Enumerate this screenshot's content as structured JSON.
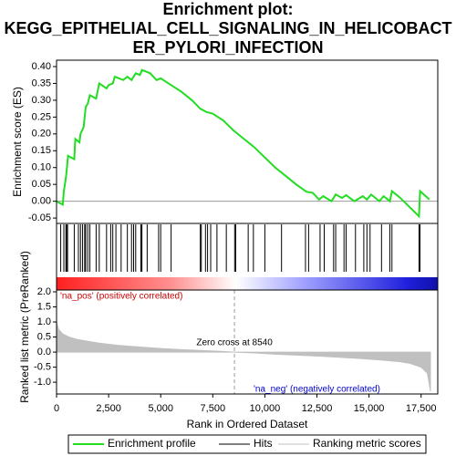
{
  "chart_data": [
    {
      "type": "line",
      "title": "Enrichment plot:",
      "subtitle": "KEGG_EPITHELIAL_CELL_SIGNALING_IN_HELICOBACTER_PYLORI_INFECTION",
      "ylabel": "Enrichment score (ES)",
      "xlim": [
        0,
        18300
      ],
      "ylim": [
        -0.066,
        0.419
      ],
      "yticks": [
        {
          "value": 0.4,
          "label": "0.40"
        },
        {
          "value": 0.35,
          "label": "0.35"
        },
        {
          "value": 0.3,
          "label": "0.30"
        },
        {
          "value": 0.25,
          "label": "0.25"
        },
        {
          "value": 0.2,
          "label": "0.20"
        },
        {
          "value": 0.15,
          "label": "0.15"
        },
        {
          "value": 0.1,
          "label": "0.10"
        },
        {
          "value": 0.05,
          "label": "0.05"
        },
        {
          "value": 0,
          "label": "0.00"
        },
        {
          "value": -0.05,
          "label": "-0.05"
        }
      ],
      "series": [
        {
          "name": "Enrichment profile",
          "color": "#22dd22",
          "x": [
            0,
            300,
            350,
            450,
            500,
            550,
            850,
            900,
            1100,
            1150,
            1300,
            1400,
            1500,
            1600,
            1900,
            2050,
            2400,
            2500,
            2700,
            2800,
            3200,
            3400,
            3600,
            3800,
            4000,
            4100,
            4500,
            4800,
            5000,
            5500,
            6000,
            6500,
            6900,
            7200,
            7500,
            8000,
            8500,
            9000,
            9500,
            10000,
            10500,
            11000,
            11500,
            12000,
            12300,
            12600,
            12800,
            13200,
            13400,
            13700,
            13900,
            14300,
            14700,
            14900,
            15100,
            15500,
            15700,
            16000,
            16100,
            16500,
            17400,
            17450,
            17900
          ],
          "values": [
            0,
            -0.01,
            0.03,
            0.07,
            0.1,
            0.135,
            0.125,
            0.185,
            0.175,
            0.2,
            0.22,
            0.28,
            0.29,
            0.315,
            0.305,
            0.35,
            0.335,
            0.345,
            0.35,
            0.37,
            0.36,
            0.37,
            0.36,
            0.38,
            0.375,
            0.39,
            0.38,
            0.36,
            0.365,
            0.345,
            0.325,
            0.3,
            0.275,
            0.265,
            0.26,
            0.24,
            0.21,
            0.185,
            0.16,
            0.13,
            0.1,
            0.075,
            0.05,
            0.028,
            0.025,
            0.005,
            0.015,
            0,
            0.02,
            0.01,
            0.018,
            0,
            0.015,
            0.005,
            0.02,
            0,
            0.015,
            0,
            0.03,
            0.01,
            -0.045,
            0.03,
            0.005
          ]
        },
        {
          "name": "Hits",
          "color": "#000000",
          "x": [
            200,
            350,
            450,
            480,
            530,
            850,
            1050,
            1150,
            1250,
            1350,
            1400,
            1500,
            1600,
            1900,
            2050,
            2400,
            2600,
            2700,
            2850,
            3100,
            3400,
            3600,
            3700,
            3800,
            4050,
            4100,
            4350,
            4900,
            5000,
            5500,
            6900,
            6950,
            7150,
            7250,
            7400,
            7700,
            8150,
            8550,
            8600,
            9200,
            9450,
            10000,
            10800,
            11950,
            12100,
            12650,
            12850,
            13300,
            13400,
            13800,
            13900,
            14350,
            14750,
            14900,
            15050,
            15600,
            16000,
            16100,
            17400,
            17450
          ]
        }
      ],
      "grid": false
    },
    {
      "type": "area",
      "ylabel": "Ranked list metric (PreRanked)",
      "xlabel": "Rank in Ordered Dataset",
      "xlim": [
        0,
        18300
      ],
      "ylim": [
        -1.39,
        2.06
      ],
      "xticks": [
        0,
        {
          "value": 2500,
          "label": "2,500"
        },
        {
          "value": 5000,
          "label": "5,000"
        },
        {
          "value": 7500,
          "label": "7,500"
        },
        {
          "value": 10000,
          "label": "10,000"
        },
        {
          "value": 12500,
          "label": "12,500"
        },
        {
          "value": 15000,
          "label": "15,000"
        },
        {
          "value": 17500,
          "label": "17,500"
        }
      ],
      "yticks": [
        {
          "value": 2,
          "label": "2.0"
        },
        {
          "value": 1.5,
          "label": "1.5"
        },
        {
          "value": 1,
          "label": "1.0"
        },
        {
          "value": 0.5,
          "label": "0.5"
        },
        {
          "value": 0,
          "label": "0.0"
        },
        -0.5,
        {
          "value": -1,
          "label": "-1.0"
        }
      ],
      "series": [
        {
          "name": "Ranking metric scores",
          "color": "#c0c0c0",
          "x": [
            0,
            100,
            300,
            600,
            1000,
            2000,
            3000,
            4000,
            5000,
            6000,
            7000,
            8000,
            8540,
            9500,
            10500,
            11500,
            12500,
            13500,
            14500,
            15500,
            16500,
            17000,
            17500,
            17800,
            17950
          ],
          "values": [
            1.0,
            0.75,
            0.6,
            0.5,
            0.42,
            0.3,
            0.22,
            0.17,
            0.12,
            0.08,
            0.05,
            0.02,
            0,
            -0.03,
            -0.07,
            -0.1,
            -0.13,
            -0.17,
            -0.21,
            -0.26,
            -0.32,
            -0.38,
            -0.5,
            -0.7,
            -1.3
          ]
        }
      ],
      "zero_cross": 8540,
      "annotations": [
        "'na_pos' (positively correlated)",
        "'na_neg' (negatively correlated)",
        "Zero cross at 8540"
      ]
    }
  ]
}
